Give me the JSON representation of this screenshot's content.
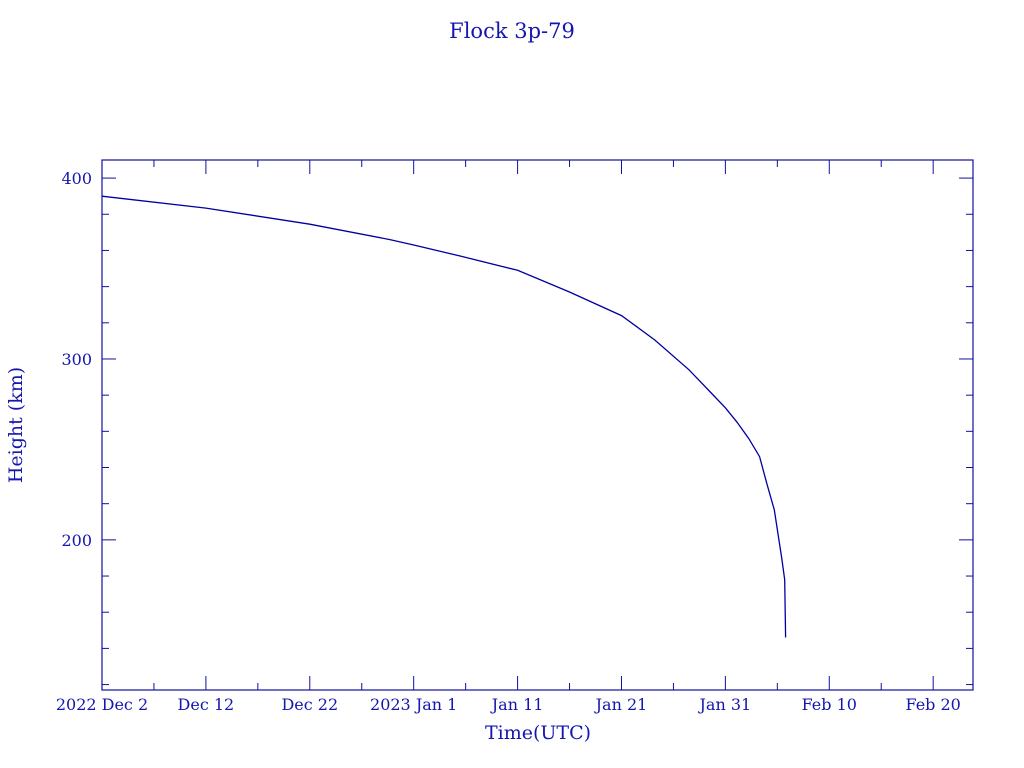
{
  "chart_data": {
    "type": "line",
    "title": "Flock 3p-79",
    "xlabel": "Time(UTC)",
    "ylabel": "Height (km)",
    "xlim": [
      "2022-12-02T00:00Z",
      "2023-02-23T20:00Z"
    ],
    "ylim": [
      117,
      410
    ],
    "x_tick_labels": [
      "2022 Dec  2",
      "Dec 12",
      "Dec 22",
      "2023 Jan  1",
      "Jan 11",
      "Jan 21",
      "Jan 31",
      "Feb 10",
      "Feb 20"
    ],
    "x_tick_dates": [
      "2022-12-02",
      "2022-12-12",
      "2022-12-22",
      "2023-01-01",
      "2023-01-11",
      "2023-01-21",
      "2023-01-31",
      "2023-02-10",
      "2023-02-20"
    ],
    "y_ticks": [
      200,
      300,
      400
    ],
    "grid": false,
    "color": "#0000a0",
    "series": [
      {
        "x": [
          "2022-12-02T00:00Z",
          "2022-12-12T00:00Z",
          "2022-12-22T00:00Z",
          "2022-12-29T17:00Z",
          "2023-01-01T00:00Z",
          "2023-01-05T10:00Z",
          "2023-01-11T00:00Z",
          "2023-01-16T00:00Z",
          "2023-01-21T00:00Z",
          "2023-01-24T05:00Z",
          "2023-01-27T12:00Z",
          "2023-01-29T12:00Z",
          "2023-01-31T00:00Z",
          "2023-02-01T03:00Z",
          "2023-02-02T06:00Z",
          "2023-02-03T07:00Z",
          "2023-02-04T00:00Z",
          "2023-02-04T17:00Z",
          "2023-02-05T10:00Z",
          "2023-02-05T17:00Z",
          "2023-02-05T19:00Z"
        ],
        "y": [
          390,
          383.4,
          374.5,
          366,
          363,
          357,
          349,
          337,
          324,
          310.5,
          294,
          282,
          273,
          265,
          256,
          246,
          231,
          216.6,
          190,
          178,
          146
        ]
      }
    ]
  }
}
